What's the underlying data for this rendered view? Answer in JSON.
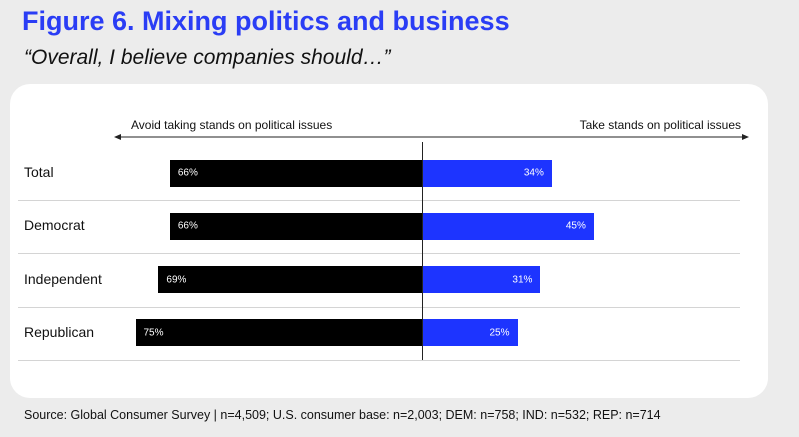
{
  "figure": {
    "title": "Figure 6. Mixing politics and business",
    "subtitle": "“Overall, I believe companies should…”"
  },
  "chart_data": {
    "type": "bar",
    "orientation": "horizontal-diverging",
    "left_label": "Avoid taking stands on political issues",
    "right_label": "Take stands on political issues",
    "categories": [
      "Total",
      "Democrat",
      "Independent",
      "Republican"
    ],
    "series": [
      {
        "name": "Avoid taking stands on political issues",
        "values": [
          66,
          66,
          69,
          75
        ],
        "labels": [
          "66%",
          "66%",
          "69%",
          "75%"
        ],
        "color": "#000000"
      },
      {
        "name": "Take stands on political issues",
        "values": [
          34,
          45,
          31,
          25
        ],
        "labels": [
          "34%",
          "45%",
          "31%",
          "25%"
        ],
        "color": "#1d34ff"
      }
    ],
    "xlim": [
      -100,
      100
    ]
  },
  "source": "Source: Global Consumer Survey | n=4,509; U.S. consumer base: n=2,003; DEM: n=758; IND: n=532; REP: n=714",
  "colors": {
    "title": "#2a3df5",
    "avoid": "#000000",
    "take": "#1d34ff",
    "background": "#ececec",
    "card": "#ffffff"
  }
}
